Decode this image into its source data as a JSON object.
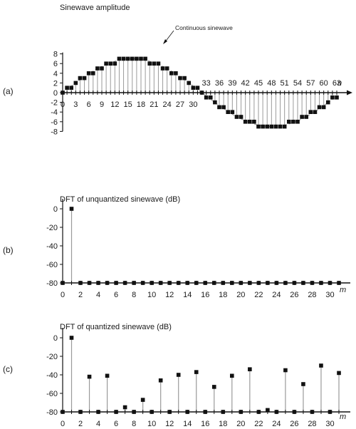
{
  "chart_data": [
    {
      "type": "scatter",
      "panel_label": "(a)",
      "title": "Sinewave amplitude",
      "xlabel": "n",
      "xlim": [
        0,
        63
      ],
      "ylim": [
        -8,
        8
      ],
      "yticks": [
        -8,
        -6,
        -4,
        -2,
        0,
        2,
        4,
        6,
        8
      ],
      "xticks_bottom": [
        0,
        3,
        6,
        9,
        12,
        15,
        18,
        21,
        24,
        27,
        30
      ],
      "xticks_top": [
        33,
        36,
        39,
        42,
        45,
        48,
        51,
        54,
        57,
        60,
        63
      ],
      "annotation": "Continuous sinewave",
      "continuous_curve": {
        "amplitude": 7,
        "period": 64
      },
      "series": [
        {
          "x": [
            0,
            1,
            2,
            3,
            4,
            5,
            6,
            7,
            8,
            9,
            10,
            11,
            12,
            13,
            14,
            15,
            16,
            17,
            18,
            19,
            20,
            21,
            22,
            23,
            24,
            25,
            26,
            27,
            28,
            29,
            30,
            31,
            32,
            33,
            34,
            35,
            36,
            37,
            38,
            39,
            40,
            41,
            42,
            43,
            44,
            45,
            46,
            47,
            48,
            49,
            50,
            51,
            52,
            53,
            54,
            55,
            56,
            57,
            58,
            59,
            60,
            61,
            62,
            63
          ],
          "y": [
            0,
            1,
            1,
            2,
            3,
            3,
            4,
            4,
            5,
            5,
            6,
            6,
            6,
            7,
            7,
            7,
            7,
            7,
            7,
            7,
            6,
            6,
            6,
            5,
            5,
            4,
            4,
            3,
            3,
            2,
            1,
            1,
            0,
            -1,
            -1,
            -2,
            -3,
            -3,
            -4,
            -4,
            -5,
            -5,
            -6,
            -6,
            -6,
            -7,
            -7,
            -7,
            -7,
            -7,
            -7,
            -7,
            -6,
            -6,
            -6,
            -5,
            -5,
            -4,
            -4,
            -3,
            -3,
            -2,
            -1,
            -1
          ]
        }
      ]
    },
    {
      "type": "scatter",
      "panel_label": "(b)",
      "title": "DFT of unquantized sinewave (dB)",
      "xlabel": "m",
      "xlim": [
        0,
        31
      ],
      "ylim": [
        -80,
        0
      ],
      "yticks": [
        -80,
        -60,
        -40,
        -20,
        0
      ],
      "xticks": [
        0,
        2,
        4,
        6,
        8,
        10,
        12,
        14,
        16,
        18,
        20,
        22,
        24,
        26,
        28,
        30
      ],
      "series": [
        {
          "x": [
            0,
            1,
            2,
            3,
            4,
            5,
            6,
            7,
            8,
            9,
            10,
            11,
            12,
            13,
            14,
            15,
            16,
            17,
            18,
            19,
            20,
            21,
            22,
            23,
            24,
            25,
            26,
            27,
            28,
            29,
            30,
            31
          ],
          "y": [
            -80,
            0,
            -80,
            -80,
            -80,
            -80,
            -80,
            -80,
            -80,
            -80,
            -80,
            -80,
            -80,
            -80,
            -80,
            -80,
            -80,
            -80,
            -80,
            -80,
            -80,
            -80,
            -80,
            -80,
            -80,
            -80,
            -80,
            -80,
            -80,
            -80,
            -80,
            -80
          ]
        }
      ]
    },
    {
      "type": "scatter",
      "panel_label": "(c)",
      "title": "DFT of quantized sinewave (dB)",
      "xlabel": "m",
      "xlim": [
        0,
        31
      ],
      "ylim": [
        -80,
        0
      ],
      "yticks": [
        -80,
        -60,
        -40,
        -20,
        0
      ],
      "xticks": [
        0,
        2,
        4,
        6,
        8,
        10,
        12,
        14,
        16,
        18,
        20,
        22,
        24,
        26,
        28,
        30
      ],
      "series": [
        {
          "x": [
            0,
            1,
            2,
            3,
            4,
            5,
            6,
            7,
            8,
            9,
            10,
            11,
            12,
            13,
            14,
            15,
            16,
            17,
            18,
            19,
            20,
            21,
            22,
            23,
            24,
            25,
            26,
            27,
            28,
            29,
            30,
            31
          ],
          "y": [
            -80,
            0,
            -80,
            -42,
            -80,
            -41,
            -80,
            -75,
            -80,
            -67,
            -80,
            -46,
            -80,
            -40,
            -80,
            -37,
            -80,
            -53,
            -80,
            -41,
            -80,
            -34,
            -80,
            -78,
            -80,
            -35,
            -80,
            -50,
            -80,
            -30,
            -80,
            -38
          ]
        }
      ]
    }
  ]
}
